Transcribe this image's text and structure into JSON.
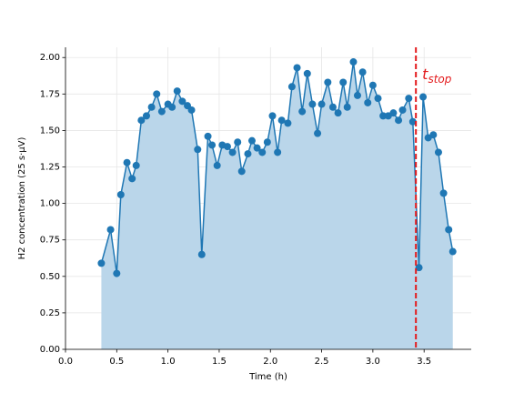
{
  "chart_data": {
    "type": "line",
    "xlabel": "Time (h)",
    "ylabel": "H2 concentration (25 s·µV)",
    "x": [
      0.35,
      0.44,
      0.5,
      0.54,
      0.6,
      0.65,
      0.69,
      0.74,
      0.79,
      0.84,
      0.89,
      0.94,
      1.0,
      1.04,
      1.09,
      1.14,
      1.19,
      1.23,
      1.29,
      1.33,
      1.39,
      1.43,
      1.48,
      1.53,
      1.58,
      1.63,
      1.68,
      1.72,
      1.78,
      1.82,
      1.87,
      1.92,
      1.97,
      2.02,
      2.07,
      2.11,
      2.17,
      2.21,
      2.26,
      2.31,
      2.36,
      2.41,
      2.46,
      2.5,
      2.56,
      2.61,
      2.66,
      2.71,
      2.75,
      2.81,
      2.85,
      2.9,
      2.95,
      3.0,
      3.05,
      3.1,
      3.15,
      3.2,
      3.25,
      3.29,
      3.35,
      3.39,
      3.45,
      3.49,
      3.54,
      3.59,
      3.64,
      3.69,
      3.74,
      3.78
    ],
    "series": [
      {
        "color": "#1f77b4",
        "fill": "#bad6ea",
        "values": [
          0.59,
          0.82,
          0.52,
          1.06,
          1.28,
          1.17,
          1.26,
          1.57,
          1.6,
          1.66,
          1.75,
          1.63,
          1.68,
          1.66,
          1.77,
          1.7,
          1.67,
          1.64,
          1.37,
          0.65,
          1.46,
          1.4,
          1.26,
          1.4,
          1.39,
          1.35,
          1.42,
          1.22,
          1.34,
          1.43,
          1.38,
          1.35,
          1.42,
          1.6,
          1.35,
          1.57,
          1.55,
          1.8,
          1.93,
          1.63,
          1.89,
          1.68,
          1.48,
          1.68,
          1.83,
          1.66,
          1.62,
          1.83,
          1.66,
          1.97,
          1.74,
          1.9,
          1.69,
          1.81,
          1.72,
          1.6,
          1.6,
          1.62,
          1.57,
          1.64,
          1.72,
          1.56,
          0.56,
          1.73,
          1.45,
          1.47,
          1.35,
          1.07,
          0.82,
          0.67
        ]
      }
    ],
    "xlim": [
      0,
      3.96
    ],
    "ylim": [
      0,
      2.07
    ],
    "xticks": [
      {
        "value": 0,
        "label": "0.0"
      },
      {
        "value": 0.5,
        "label": "0.5"
      },
      {
        "value": 1,
        "label": "1.0"
      },
      {
        "value": 1.5,
        "label": "1.5"
      },
      {
        "value": 2,
        "label": "2.0"
      },
      {
        "value": 2.5,
        "label": "2.5"
      },
      {
        "value": 3,
        "label": "3.0"
      },
      {
        "value": 3.5,
        "label": "3.5"
      }
    ],
    "yticks": [
      {
        "value": 0,
        "label": "0.00"
      },
      {
        "value": 0.25,
        "label": "0.25"
      },
      {
        "value": 0.5,
        "label": "0.50"
      },
      {
        "value": 0.75,
        "label": "0.75"
      },
      {
        "value": 1,
        "label": "1.00"
      },
      {
        "value": 1.25,
        "label": "1.25"
      },
      {
        "value": 1.5,
        "label": "1.50"
      },
      {
        "value": 1.75,
        "label": "1.75"
      },
      {
        "value": 2,
        "label": "2.00"
      }
    ],
    "grid": true,
    "vline": {
      "x": 3.42,
      "color": "#e31a1c",
      "text": "t",
      "subscript": "stop"
    }
  }
}
